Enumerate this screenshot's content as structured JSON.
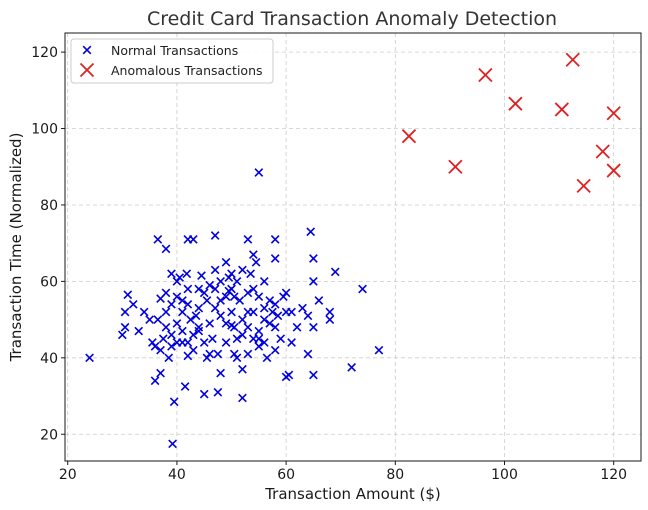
{
  "chart_data": {
    "type": "scatter",
    "title": "Credit Card Transaction Anomaly Detection",
    "xlabel": "Transaction Amount ($)",
    "ylabel": "Transaction Time (Normalized)",
    "xlim": [
      19.5,
      125
    ],
    "ylim": [
      13,
      125
    ],
    "xticks": [
      20,
      40,
      60,
      80,
      100,
      120
    ],
    "yticks": [
      20,
      40,
      60,
      80,
      100,
      120
    ],
    "grid": true,
    "legend_position": "top-left",
    "series": [
      {
        "name": "Normal Transactions",
        "color": "#0000dd",
        "marker": "x",
        "points": [
          [
            24,
            40
          ],
          [
            30,
            46
          ],
          [
            30.5,
            48
          ],
          [
            31,
            56.5
          ],
          [
            30.5,
            52
          ],
          [
            32,
            54
          ],
          [
            33,
            47
          ],
          [
            34,
            52
          ],
          [
            35,
            50
          ],
          [
            35.5,
            44
          ],
          [
            36,
            43
          ],
          [
            36,
            34
          ],
          [
            36.5,
            71
          ],
          [
            36.5,
            50
          ],
          [
            37,
            36
          ],
          [
            37,
            42
          ],
          [
            37.5,
            45
          ],
          [
            38,
            68.5
          ],
          [
            38,
            57
          ],
          [
            38,
            52
          ],
          [
            38,
            48
          ],
          [
            38.5,
            40
          ],
          [
            39,
            62
          ],
          [
            39,
            54
          ],
          [
            39,
            46
          ],
          [
            39,
            43
          ],
          [
            39.2,
            17.5
          ],
          [
            39.5,
            28.5
          ],
          [
            40,
            60
          ],
          [
            40,
            56
          ],
          [
            40,
            49
          ],
          [
            40,
            44
          ],
          [
            40.5,
            61
          ],
          [
            41,
            55
          ],
          [
            41,
            52
          ],
          [
            41,
            47
          ],
          [
            41.5,
            32.5
          ],
          [
            41.8,
            62
          ],
          [
            42,
            71
          ],
          [
            42,
            58
          ],
          [
            42,
            54
          ],
          [
            42,
            44
          ],
          [
            42.5,
            50
          ],
          [
            43,
            71
          ],
          [
            43,
            46
          ],
          [
            43,
            42
          ],
          [
            44,
            58
          ],
          [
            44,
            53
          ],
          [
            44,
            48
          ],
          [
            44.5,
            61.5
          ],
          [
            45,
            57
          ],
          [
            45,
            44
          ],
          [
            45,
            30.5
          ],
          [
            45.5,
            40
          ],
          [
            45.5,
            55
          ],
          [
            46,
            49
          ],
          [
            46,
            59
          ],
          [
            46.5,
            45
          ],
          [
            47,
            72
          ],
          [
            47,
            63
          ],
          [
            47,
            53
          ],
          [
            47.5,
            41
          ],
          [
            47.5,
            31
          ],
          [
            48,
            60
          ],
          [
            48,
            55
          ],
          [
            48,
            51
          ],
          [
            48,
            36
          ],
          [
            49,
            65
          ],
          [
            49,
            56
          ],
          [
            49,
            49
          ],
          [
            49,
            44
          ],
          [
            49.5,
            61
          ],
          [
            50,
            62
          ],
          [
            50,
            58
          ],
          [
            50,
            52
          ],
          [
            50.5,
            48
          ],
          [
            50.5,
            41
          ],
          [
            51,
            60
          ],
          [
            51,
            45
          ],
          [
            51,
            40
          ],
          [
            51.5,
            55
          ],
          [
            52,
            63
          ],
          [
            52,
            50
          ],
          [
            52,
            46
          ],
          [
            52,
            37
          ],
          [
            52,
            29.5
          ],
          [
            53,
            71
          ],
          [
            53,
            57
          ],
          [
            53,
            52
          ],
          [
            53,
            48
          ],
          [
            53,
            41
          ],
          [
            53.5,
            62
          ],
          [
            54,
            67
          ],
          [
            54,
            58
          ],
          [
            54,
            52
          ],
          [
            54,
            45
          ],
          [
            54.5,
            65
          ],
          [
            55,
            88.5
          ],
          [
            55,
            56
          ],
          [
            55,
            47
          ],
          [
            55,
            43
          ],
          [
            56,
            60
          ],
          [
            56,
            53
          ],
          [
            56,
            44
          ],
          [
            56.5,
            40
          ],
          [
            57,
            55
          ],
          [
            57,
            49
          ],
          [
            57.5,
            52
          ],
          [
            58,
            71
          ],
          [
            58,
            66
          ],
          [
            58,
            54
          ],
          [
            58,
            48
          ],
          [
            58,
            42
          ],
          [
            58.5,
            51
          ],
          [
            59,
            45
          ],
          [
            59.5,
            56
          ],
          [
            60,
            57
          ],
          [
            60,
            35
          ],
          [
            60.5,
            35.5
          ],
          [
            61,
            44
          ],
          [
            61,
            52
          ],
          [
            62,
            48
          ],
          [
            63,
            53
          ],
          [
            64,
            51
          ],
          [
            64,
            41
          ],
          [
            64.5,
            73
          ],
          [
            65,
            66
          ],
          [
            65,
            60
          ],
          [
            65,
            48
          ],
          [
            65,
            35.5
          ],
          [
            66,
            55
          ],
          [
            68,
            50
          ],
          [
            68,
            52
          ],
          [
            69,
            62.5
          ],
          [
            72,
            37.5
          ],
          [
            74,
            58
          ],
          [
            77,
            42
          ],
          [
            49.5,
            57.5
          ],
          [
            46,
            41
          ],
          [
            42,
            40.5
          ],
          [
            50.5,
            56
          ],
          [
            44,
            47
          ],
          [
            37,
            55.5
          ],
          [
            60,
            52
          ],
          [
            56,
            50
          ],
          [
            47,
            58
          ],
          [
            43.5,
            51
          ],
          [
            50,
            48.5
          ],
          [
            41,
            44
          ],
          [
            55,
            45
          ]
        ]
      },
      {
        "name": "Anomalous Transactions",
        "color": "#dd2222",
        "marker": "x",
        "points": [
          [
            82.5,
            98
          ],
          [
            91,
            90
          ],
          [
            96.5,
            114
          ],
          [
            102,
            106.5
          ],
          [
            110.5,
            105
          ],
          [
            112.5,
            118
          ],
          [
            114.5,
            85
          ],
          [
            118,
            94
          ],
          [
            120,
            104
          ],
          [
            120,
            89
          ]
        ]
      }
    ]
  }
}
